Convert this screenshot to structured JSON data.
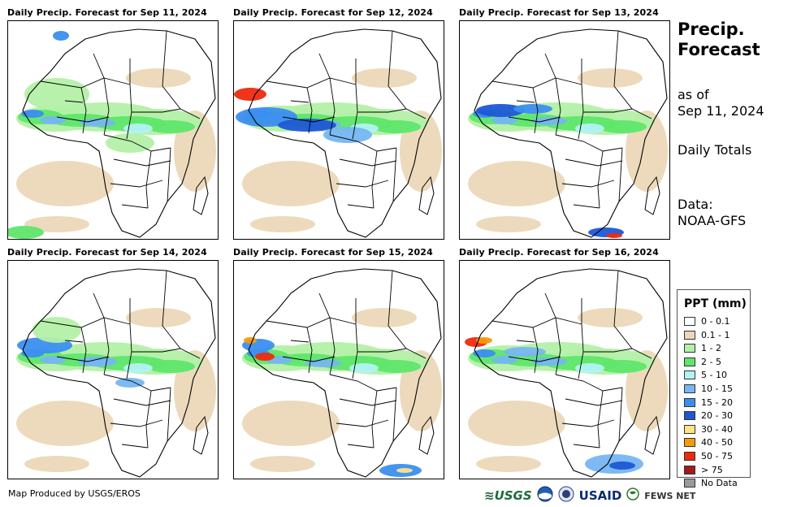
{
  "panels": [
    {
      "title": "Daily Precip. Forecast for Sep 11, 2024"
    },
    {
      "title": "Daily Precip. Forecast for Sep 12, 2024"
    },
    {
      "title": "Daily Precip. Forecast for Sep 13, 2024"
    },
    {
      "title": "Daily Precip. Forecast for Sep 14, 2024"
    },
    {
      "title": "Daily Precip. Forecast for Sep 15, 2024"
    },
    {
      "title": "Daily Precip. Forecast for Sep 16, 2024"
    }
  ],
  "side": {
    "title_line1": "Precip.",
    "title_line2": "Forecast",
    "asof_line1": "as of",
    "asof_line2": "Sep 11, 2024",
    "totals": "Daily Totals",
    "data_line1": "Data:",
    "data_line2": "NOAA-GFS"
  },
  "legend": {
    "title": "PPT (mm)",
    "items": [
      {
        "label": "0 - 0.1",
        "color": "#ffffff"
      },
      {
        "label": "0.1 - 1",
        "color": "#ecd8b8"
      },
      {
        "label": "1 - 2",
        "color": "#b3f0a6"
      },
      {
        "label": "2 - 5",
        "color": "#5fe66a"
      },
      {
        "label": "5 - 10",
        "color": "#b2f2f6"
      },
      {
        "label": "10 - 15",
        "color": "#76b6f2"
      },
      {
        "label": "15 - 20",
        "color": "#3b8ef0"
      },
      {
        "label": "20 - 30",
        "color": "#1e57d6"
      },
      {
        "label": "30 - 40",
        "color": "#fbe38a"
      },
      {
        "label": "40 - 50",
        "color": "#f59b0c"
      },
      {
        "label": "50 - 75",
        "color": "#ee2a0e"
      },
      {
        "label": "> 75",
        "color": "#a31a1a"
      },
      {
        "label": "No Data",
        "color": "#9a9a9a"
      }
    ]
  },
  "footer": {
    "credit": "Map Produced by USGS/EROS",
    "logo_usgs": "≋USGS",
    "logo_usaid": "USAID",
    "logo_fews": "FEWS NET"
  }
}
